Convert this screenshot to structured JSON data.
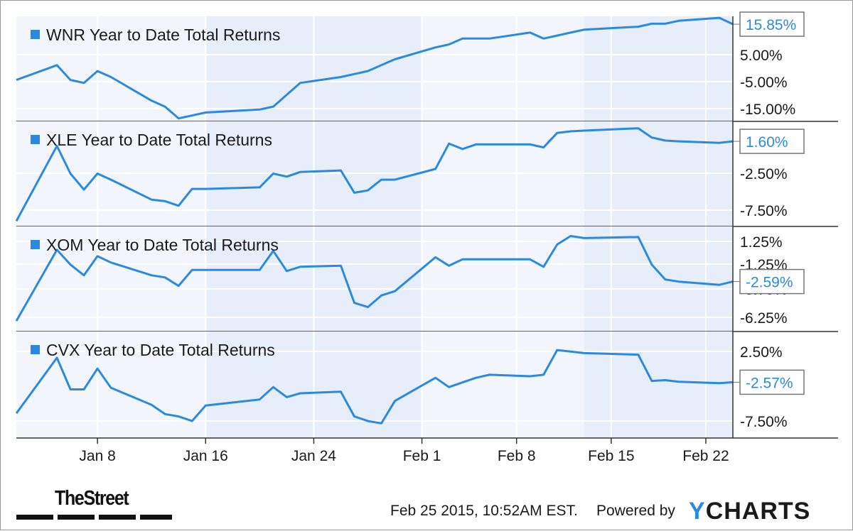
{
  "chart_data": {
    "type": "line",
    "x_dates": [
      "Jan 2",
      "Jan 5",
      "Jan 6",
      "Jan 7",
      "Jan 8",
      "Jan 9",
      "Jan 12",
      "Jan 13",
      "Jan 14",
      "Jan 15",
      "Jan 16",
      "Jan 20",
      "Jan 21",
      "Jan 22",
      "Jan 23",
      "Jan 26",
      "Jan 27",
      "Jan 28",
      "Jan 29",
      "Jan 30",
      "Feb 2",
      "Feb 3",
      "Feb 4",
      "Feb 5",
      "Feb 6",
      "Feb 9",
      "Feb 10",
      "Feb 11",
      "Feb 12",
      "Feb 13",
      "Feb 17",
      "Feb 18",
      "Feb 19",
      "Feb 20",
      "Feb 23",
      "Feb 24"
    ],
    "xticks": [
      "Jan 8",
      "Jan 16",
      "Jan 24",
      "Feb 1",
      "Feb 8",
      "Feb 15",
      "Feb 22"
    ],
    "xtick_dates": [
      "Jan 8",
      "Jan 16",
      "Jan 24",
      "Feb 1",
      "Feb 8",
      "Feb 15",
      "Feb 22"
    ],
    "charts": [
      {
        "title": "WNR Year to Date Total Returns",
        "yticks": [
          "5.00%",
          "-5.00%",
          "-15.00%"
        ],
        "ytick_values": [
          5,
          -5,
          -15
        ],
        "last_value_label": "15.85%",
        "values": [
          -3,
          2,
          -3,
          -4,
          0,
          -2,
          -10,
          -12,
          -16,
          -15,
          -14,
          -13,
          -12,
          -8,
          -4,
          -2,
          -1,
          0,
          2,
          4,
          8,
          9,
          11,
          11,
          11,
          13,
          11,
          12,
          13,
          14,
          15,
          16,
          16,
          17,
          18,
          15.85
        ]
      },
      {
        "title": "XLE Year to Date Total Returns",
        "yticks": [
          "-2.50%",
          "-7.50%"
        ],
        "ytick_values": [
          -2.5,
          -7.5
        ],
        "last_value_label": "1.60%",
        "values": [
          -8.8,
          1.0,
          -2.6,
          -4.7,
          -2.6,
          -3.4,
          -6.0,
          -6.2,
          -6.8,
          -4.6,
          -4.6,
          -4.4,
          -2.6,
          -3.0,
          -2.4,
          -2.2,
          -5.1,
          -4.8,
          -3.4,
          -3.4,
          -2.0,
          1.3,
          0.6,
          1.2,
          1.2,
          1.2,
          0.8,
          2.7,
          2.9,
          3.0,
          3.3,
          2.1,
          1.7,
          1.6,
          1.4,
          1.6
        ]
      },
      {
        "title": "XOM Year to Date Total Returns",
        "yticks": [
          "1.25%",
          "-1.25%",
          "-3.75%",
          "-6.25%"
        ],
        "ytick_values": [
          1.25,
          -1.25,
          -3.75,
          -6.25
        ],
        "last_value_label": "-2.59%",
        "values": [
          -6.3,
          0.4,
          -1.0,
          -2.0,
          -0.2,
          -0.8,
          -2.0,
          -2.2,
          -3.0,
          -1.5,
          -1.5,
          -1.5,
          0.3,
          -1.6,
          -1.2,
          -1.1,
          -4.6,
          -5.0,
          -3.9,
          -3.5,
          -0.3,
          -1.1,
          -0.5,
          -0.5,
          -0.5,
          -0.5,
          -1.2,
          0.9,
          1.7,
          1.5,
          1.6,
          -1.0,
          -2.4,
          -2.6,
          -2.9,
          -2.59
        ]
      },
      {
        "title": "CVX Year to Date Total Returns",
        "yticks": [
          "2.50%",
          "-7.50%"
        ],
        "ytick_values": [
          2.5,
          -7.5
        ],
        "last_value_label": "-2.57%",
        "values": [
          -6.6,
          0.6,
          -3.5,
          -3.5,
          -0.8,
          -3.3,
          -5.5,
          -6.7,
          -7.0,
          -7.6,
          -5.6,
          -4.8,
          -3.2,
          -4.5,
          -4.0,
          -3.8,
          -7.0,
          -7.6,
          -7.9,
          -5.0,
          -2.0,
          -3.2,
          -2.6,
          -2.0,
          -1.6,
          -1.8,
          -1.6,
          1.6,
          1.4,
          1.2,
          1.0,
          -2.4,
          -2.3,
          -2.5,
          -2.7,
          -2.57
        ]
      }
    ],
    "line_color": "#2a8ae0",
    "grid": true
  },
  "footer": {
    "brand": "TheStreet",
    "timestamp": "Feb 25 2015, 10:52AM EST.",
    "powered_by": "Powered by",
    "provider_y": "Y",
    "provider_rest": "CHARTS"
  },
  "colors": {
    "accent": "#2a8ae0",
    "panel_bg": "#f2f6fc",
    "panel_bg_shaded": "#e7eef9",
    "axis": "#333333"
  }
}
